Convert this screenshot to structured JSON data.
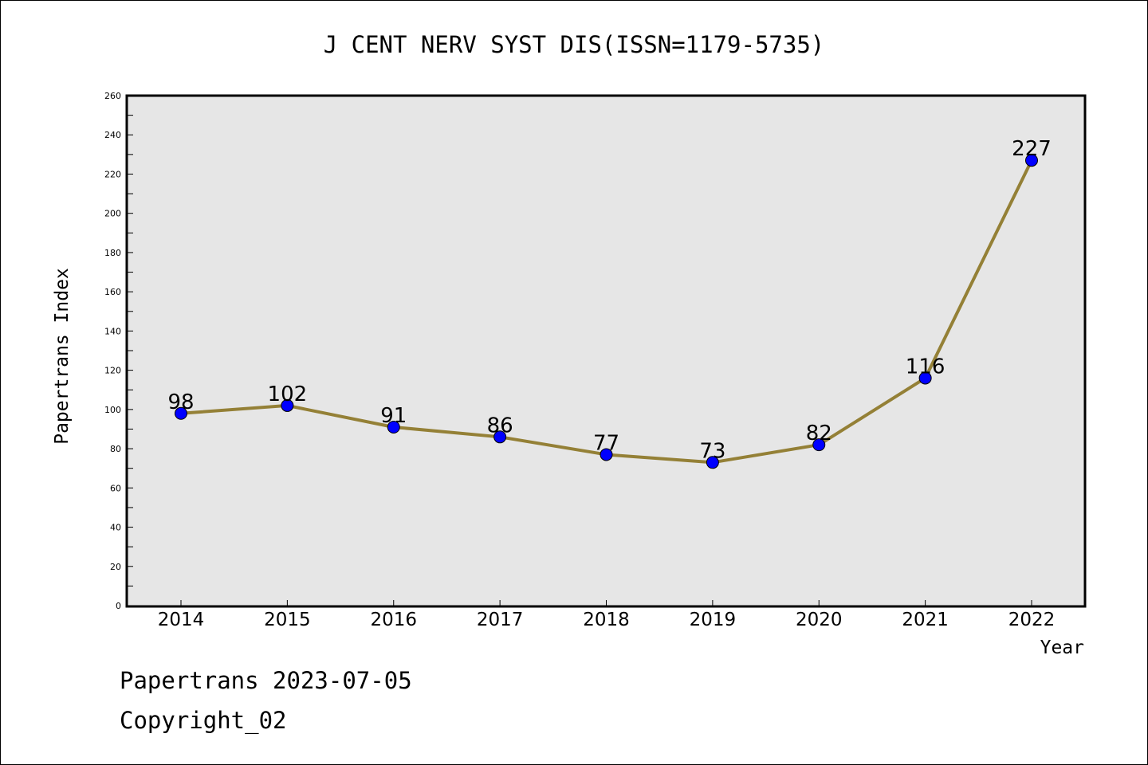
{
  "chart_data": {
    "type": "line",
    "title": "J CENT NERV SYST DIS(ISSN=1179-5735)",
    "xlabel": "Year",
    "ylabel": "Papertrans Index",
    "x": [
      "2014",
      "2015",
      "2016",
      "2017",
      "2018",
      "2019",
      "2020",
      "2021",
      "2022"
    ],
    "values": [
      98,
      102,
      91,
      86,
      77,
      73,
      82,
      116,
      227
    ],
    "data_labels": [
      "98",
      "102",
      "91",
      "86",
      "77",
      "73",
      "82",
      "116",
      "227"
    ],
    "ylim": [
      0,
      260
    ],
    "yticks": [
      "0",
      "20",
      "40",
      "60",
      "80",
      "100",
      "120",
      "140",
      "160",
      "180",
      "200",
      "220",
      "240",
      "260"
    ],
    "grid": false,
    "legend": "none",
    "colors": {
      "line": "#948036",
      "marker": "#0000ff",
      "plot_background": "#e6e6e6"
    }
  },
  "footer": {
    "source_line": "Papertrans 2023-07-05",
    "copyright_line": "Copyright_02"
  }
}
